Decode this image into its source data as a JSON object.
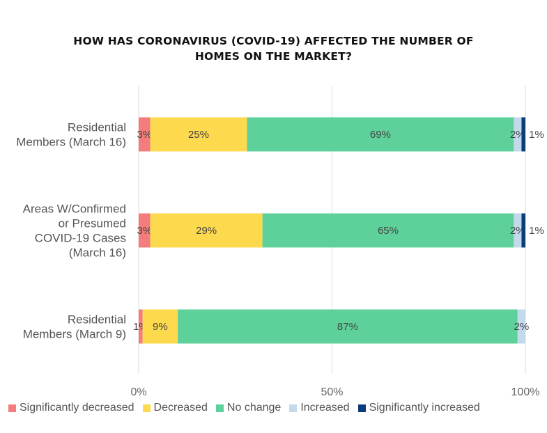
{
  "title": {
    "line1": "HOW HAS CORONAVIRUS (COVID-19) AFFECTED THE NUMBER OF",
    "line2": "HOMES ON THE MARKET?"
  },
  "chart_data": {
    "type": "bar",
    "orientation": "horizontal",
    "stacked": "percent",
    "title": "HOW HAS CORONAVIRUS (COVID-19) AFFECTED THE NUMBER OF HOMES ON THE MARKET?",
    "categories": [
      [
        "Residential",
        "Members (March 16)"
      ],
      [
        "Areas W/Confirmed",
        "or Presumed",
        "COVID-19 Cases",
        "(March 16)"
      ],
      [
        "Residential",
        "Members (March 9)"
      ]
    ],
    "series": [
      {
        "name": "Significantly decreased",
        "color": "#f47c7c",
        "values": [
          3,
          3,
          1
        ],
        "labels": [
          "3%",
          "3%",
          "1%"
        ]
      },
      {
        "name": "Decreased",
        "color": "#fdd94e",
        "values": [
          25,
          29,
          9
        ],
        "labels": [
          "25%",
          "29%",
          "9%"
        ]
      },
      {
        "name": "No change",
        "color": "#5ed19b",
        "values": [
          69,
          65,
          87
        ],
        "labels": [
          "69%",
          "65%",
          "87%"
        ]
      },
      {
        "name": "Increased",
        "color": "#c3d9ec",
        "values": [
          2,
          2,
          2
        ],
        "labels": [
          "2%",
          "2%",
          "2%"
        ]
      },
      {
        "name": "Significantly increased",
        "color": "#0b3d7a",
        "values": [
          1,
          1,
          0
        ],
        "labels": [
          "1%",
          "1%",
          ""
        ]
      }
    ],
    "x_ticks": [
      "0%",
      "50%",
      "100%"
    ],
    "xlim": [
      0,
      100
    ],
    "grid": true,
    "legend_position": "bottom"
  }
}
